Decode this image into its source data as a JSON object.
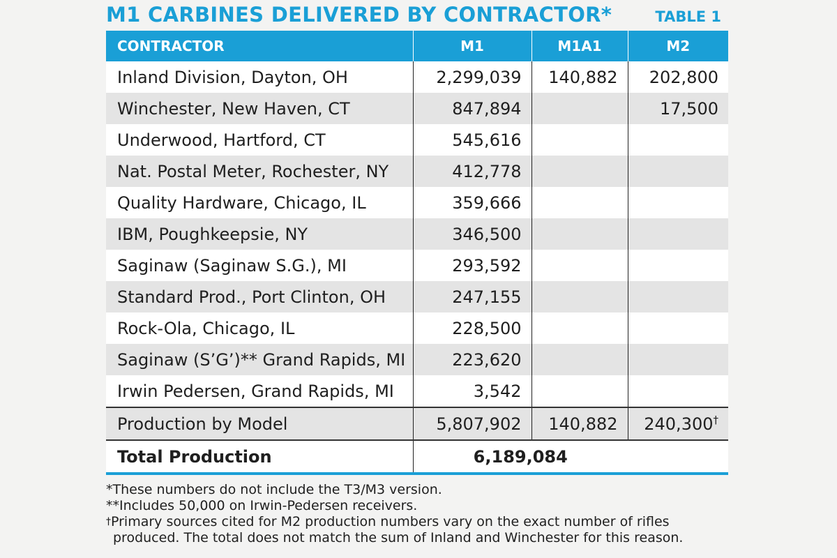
{
  "header": {
    "title": "M1 CARBINES DELIVERED BY CONTRACTOR*",
    "table_label": "TABLE 1"
  },
  "columns": [
    "CONTRACTOR",
    "M1",
    "M1A1",
    "M2"
  ],
  "rows": [
    {
      "contractor": "Inland Division, Dayton, OH",
      "m1": "2,299,039",
      "m1a1": "140,882",
      "m2": "202,800"
    },
    {
      "contractor": "Winchester, New Haven, CT",
      "m1": "847,894",
      "m1a1": "",
      "m2": "17,500"
    },
    {
      "contractor": "Underwood, Hartford, CT",
      "m1": "545,616",
      "m1a1": "",
      "m2": ""
    },
    {
      "contractor": "Nat. Postal Meter, Rochester, NY",
      "m1": "412,778",
      "m1a1": "",
      "m2": ""
    },
    {
      "contractor": "Quality Hardware, Chicago, IL",
      "m1": "359,666",
      "m1a1": "",
      "m2": ""
    },
    {
      "contractor": "IBM, Poughkeepsie, NY",
      "m1": "346,500",
      "m1a1": "",
      "m2": ""
    },
    {
      "contractor": "Saginaw (Saginaw S.G.), MI",
      "m1": "293,592",
      "m1a1": "",
      "m2": ""
    },
    {
      "contractor": "Standard Prod., Port Clinton, OH",
      "m1": "247,155",
      "m1a1": "",
      "m2": ""
    },
    {
      "contractor": "Rock-Ola, Chicago, IL",
      "m1": "228,500",
      "m1a1": "",
      "m2": ""
    },
    {
      "contractor": "Saginaw (S’G’)** Grand Rapids, MI",
      "m1": "223,620",
      "m1a1": "",
      "m2": ""
    },
    {
      "contractor": "Irwin Pedersen, Grand Rapids, MI",
      "m1": "3,542",
      "m1a1": "",
      "m2": ""
    }
  ],
  "model_row": {
    "label": "Production by Model",
    "m1": "5,807,902",
    "m1a1": "140,882",
    "m2": "240,300",
    "m2_mark": "†"
  },
  "total_row": {
    "label": "Total Production",
    "value": "6,189,084"
  },
  "notes": {
    "n1": "*These numbers do not include the T3/M3 version.",
    "n2": "**Includes 50,000 on Irwin-Pedersen receivers.",
    "n3_mark": "†",
    "n3_line1": "Primary sources cited for M2 production numbers vary on the exact number of rifles",
    "n3_line2": "produced. The total does not match the sum of Inland and Winchester for this reason."
  },
  "colors": {
    "accent": "#1a9fd6",
    "stripe": "#e4e4e4",
    "background": "#f3f3f2"
  }
}
